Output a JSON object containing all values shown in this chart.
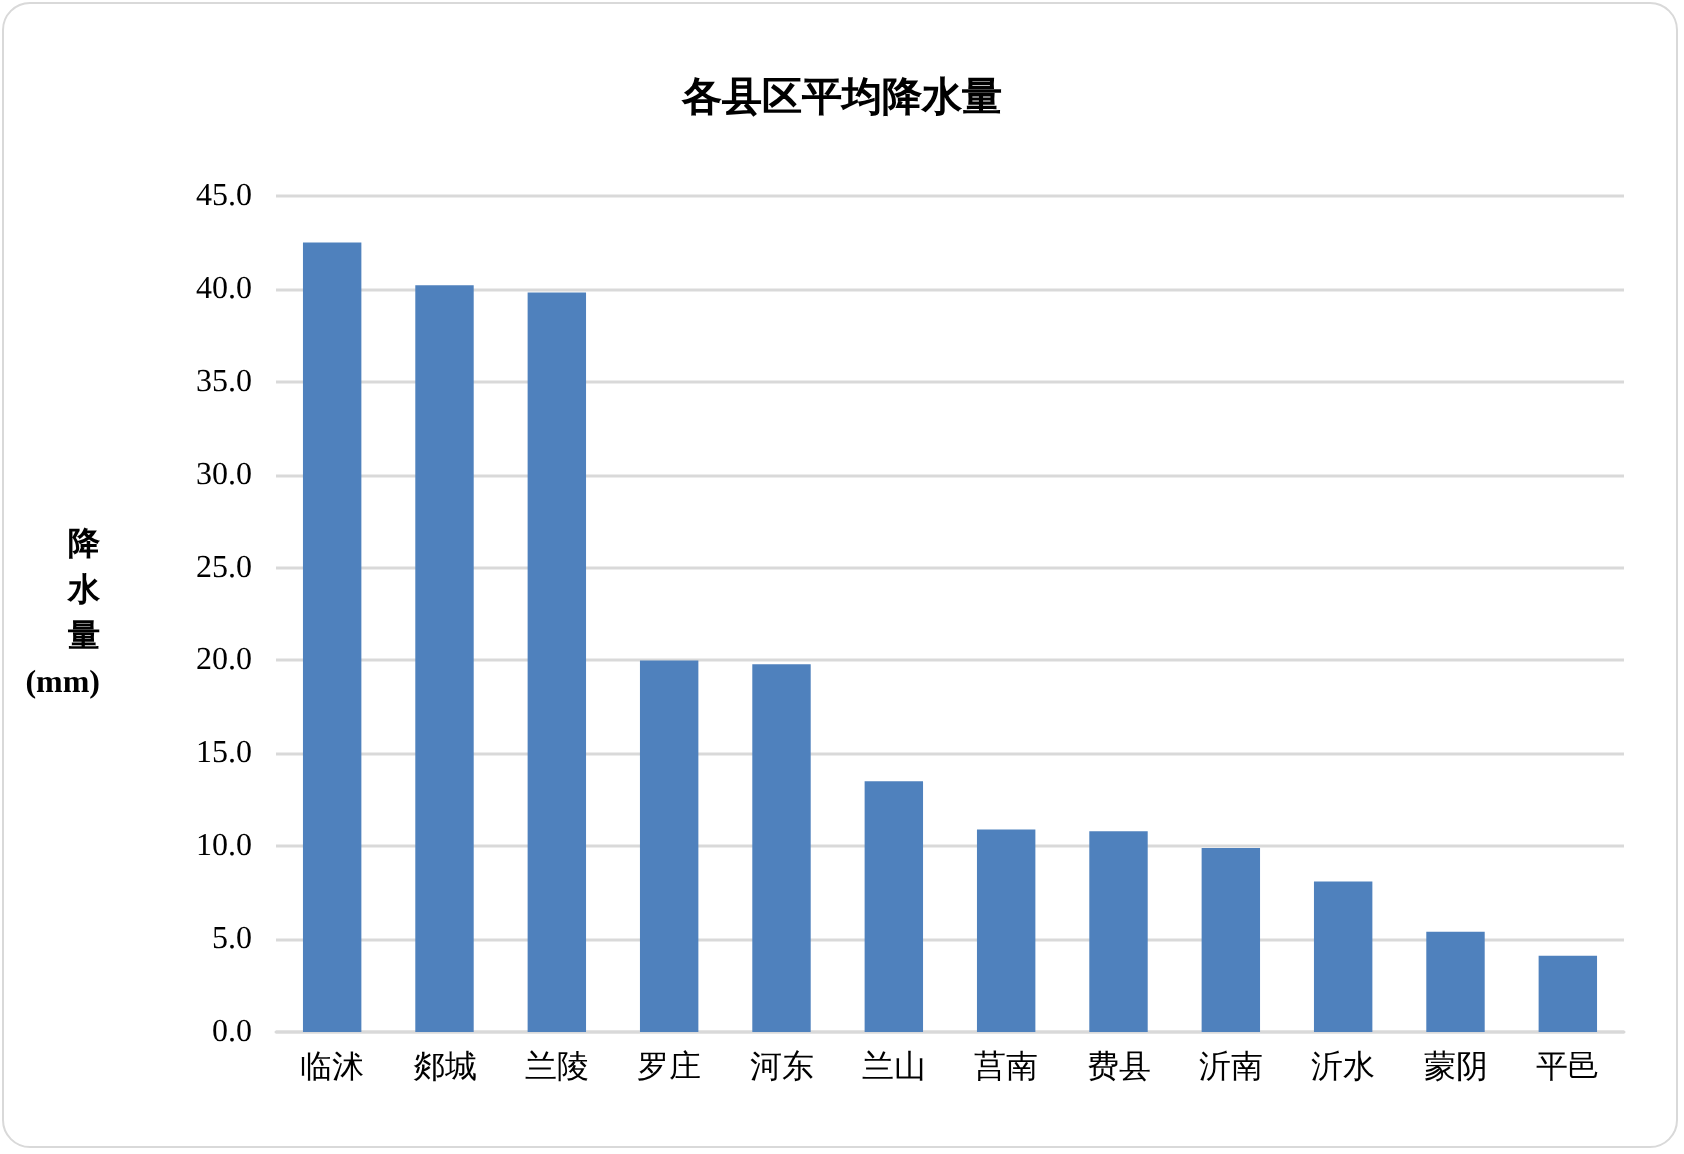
{
  "chart_data": {
    "type": "bar",
    "title": "各县区平均降水量",
    "ylabel": "降水量(mm)",
    "categories": [
      "临沭",
      "郯城",
      "兰陵",
      "罗庄",
      "河东",
      "兰山",
      "莒南",
      "费县",
      "沂南",
      "沂水",
      "蒙阴",
      "平邑"
    ],
    "values": [
      42.5,
      40.2,
      39.8,
      20.0,
      19.8,
      13.5,
      10.9,
      10.8,
      9.9,
      8.1,
      5.4,
      4.1
    ],
    "color": "#4f81bd",
    "ylim": [
      0,
      45
    ],
    "yticks": [
      {
        "value": 0,
        "label": "0.0"
      },
      {
        "value": 5,
        "label": "5.0"
      },
      {
        "value": 10,
        "label": "10.0"
      },
      {
        "value": 15,
        "label": "15.0"
      },
      {
        "value": 20,
        "label": "20.0"
      },
      {
        "value": 25,
        "label": "25.0"
      },
      {
        "value": 30,
        "label": "30.0"
      },
      {
        "value": 35,
        "label": "35.0"
      },
      {
        "value": 40,
        "label": "40.0"
      },
      {
        "value": 45,
        "label": "45.0"
      }
    ],
    "grid": "y"
  }
}
